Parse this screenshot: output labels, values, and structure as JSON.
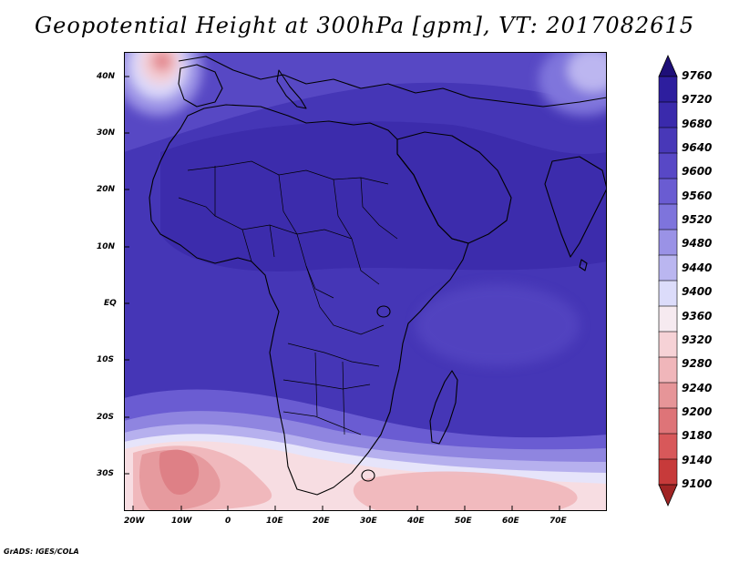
{
  "title": "Geopotential Height at 300hPa [gpm], VT: 2017082615",
  "credit": "GrADS: IGES/COLA",
  "lat_labels": [
    "40N",
    "30N",
    "20N",
    "10N",
    "EQ",
    "10S",
    "20S",
    "30S"
  ],
  "lon_labels": [
    "20W",
    "10W",
    "0",
    "10E",
    "20E",
    "30E",
    "40E",
    "50E",
    "60E",
    "70E"
  ],
  "colorbar": {
    "labels": [
      "9760",
      "9720",
      "9680",
      "9640",
      "9600",
      "9560",
      "9520",
      "9480",
      "9440",
      "9400",
      "9360",
      "9320",
      "9280",
      "9240",
      "9200",
      "9180",
      "9140",
      "9100"
    ],
    "colors": [
      "#26148c",
      "#2d1e9e",
      "#3a2aac",
      "#4838b8",
      "#5848c6",
      "#6a5cd2",
      "#7e74dc",
      "#9a92e6",
      "#bab6f0",
      "#dcdcfa",
      "#f6eaf0",
      "#f6d2d6",
      "#f0b6ba",
      "#e69598",
      "#de7478",
      "#d8585a",
      "#c73a3a",
      "#ad2a2a"
    ],
    "top_arrow_color": "#1e0f78",
    "bottom_arrow_color": "#a02424"
  },
  "map": {
    "region_labels": {
      "lon_range": "20W-80E",
      "lat_range": "37S-45N"
    }
  }
}
